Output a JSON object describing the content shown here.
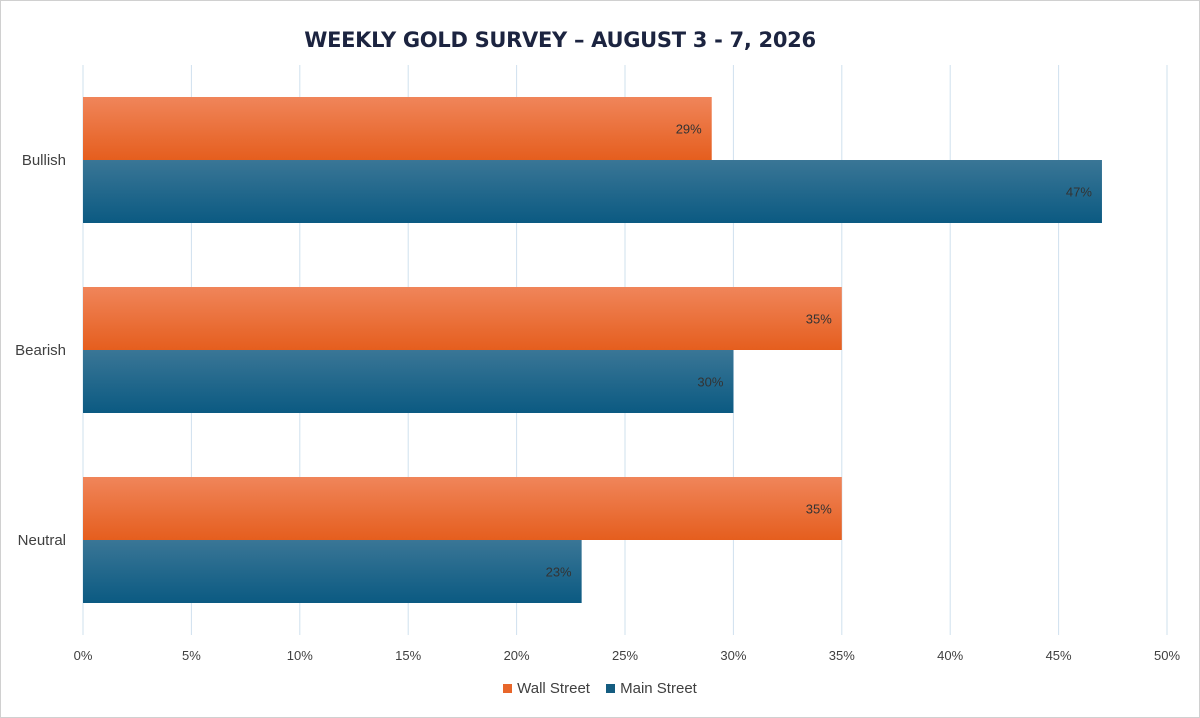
{
  "chart_data": {
    "type": "bar",
    "orientation": "horizontal",
    "title": "WEEKLY GOLD SURVEY – AUGUST 3 - 7, 2026",
    "categories": [
      "Bullish",
      "Bearish",
      "Neutral"
    ],
    "series": [
      {
        "name": "Wall Street",
        "values": [
          29,
          35,
          35
        ],
        "labels": [
          "29%",
          "35%",
          "35%"
        ],
        "color": "#e8662a"
      },
      {
        "name": "Main Street",
        "values": [
          47,
          30,
          23
        ],
        "labels": [
          "47%",
          "30%",
          "23%"
        ],
        "color": "#145c80"
      }
    ],
    "xlim": [
      0,
      50
    ],
    "xticks": [
      "0%",
      "5%",
      "10%",
      "15%",
      "20%",
      "25%",
      "30%",
      "35%",
      "40%",
      "45%",
      "50%"
    ],
    "grid": true,
    "legend_position": "bottom"
  },
  "colors": {
    "gridline": "#cfe0ee",
    "label_text": "#404040",
    "title_text": "#1c2440"
  }
}
